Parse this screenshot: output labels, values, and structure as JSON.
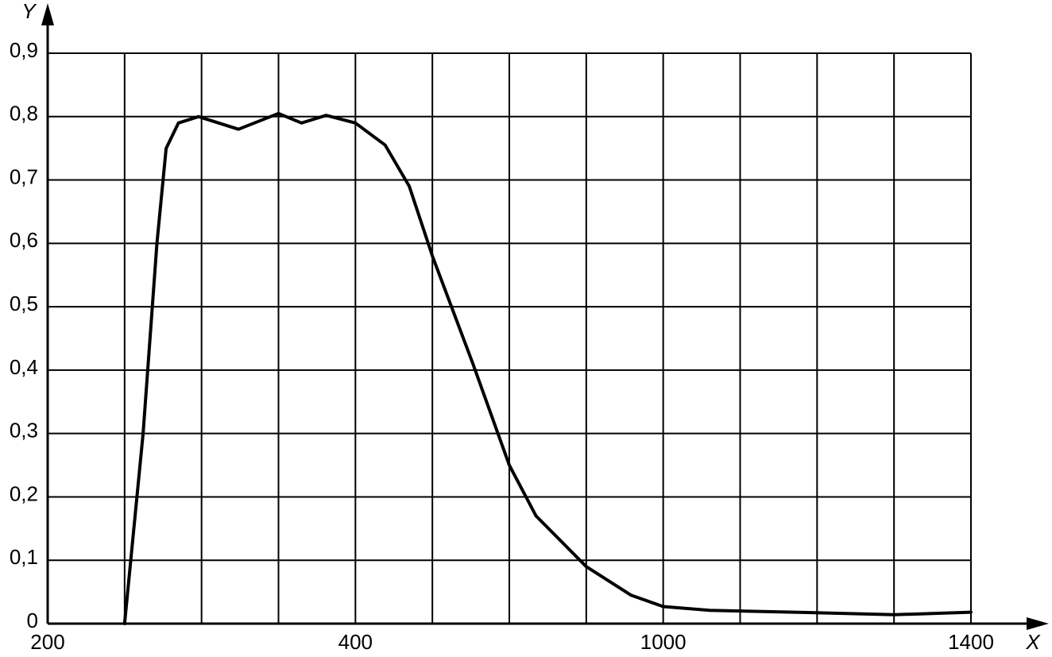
{
  "chart_data": {
    "type": "line",
    "x_label": "X",
    "y_label": "Y",
    "xlim": [
      200,
      1400
    ],
    "xticks": [
      200,
      400,
      1000,
      1400
    ],
    "xgrid": [
      200,
      250,
      300,
      350,
      400,
      550,
      700,
      850,
      1000,
      1100,
      1200,
      1300,
      1400
    ],
    "ylim": [
      0,
      0.9
    ],
    "yticks": [
      {
        "value": 0,
        "label": "0"
      },
      {
        "value": 0.1,
        "label": "0,1"
      },
      {
        "value": 0.2,
        "label": "0,2"
      },
      {
        "value": 0.3,
        "label": "0,3"
      },
      {
        "value": 0.4,
        "label": "0,4"
      },
      {
        "value": 0.5,
        "label": "0,5"
      },
      {
        "value": 0.6,
        "label": "0,6"
      },
      {
        "value": 0.7,
        "label": "0,7"
      },
      {
        "value": 0.8,
        "label": "0,8"
      },
      {
        "value": 0.9,
        "label": "0,9"
      }
    ],
    "grid": true,
    "series": [
      {
        "color": "#000000",
        "x": [
          250,
          262,
          271,
          277,
          285,
          298,
          324,
          350,
          365,
          381,
          400,
          458,
          505,
          550,
          629,
          700,
          752,
          850,
          937,
          1000,
          1060,
          1170,
          1300,
          1400
        ],
        "values": [
          0,
          0.3,
          0.6,
          0.75,
          0.79,
          0.8,
          0.78,
          0.805,
          0.79,
          0.802,
          0.79,
          0.755,
          0.69,
          0.58,
          0.41,
          0.25,
          0.17,
          0.09,
          0.045,
          0.027,
          0.021,
          0.018,
          0.014,
          0.018
        ]
      }
    ]
  }
}
